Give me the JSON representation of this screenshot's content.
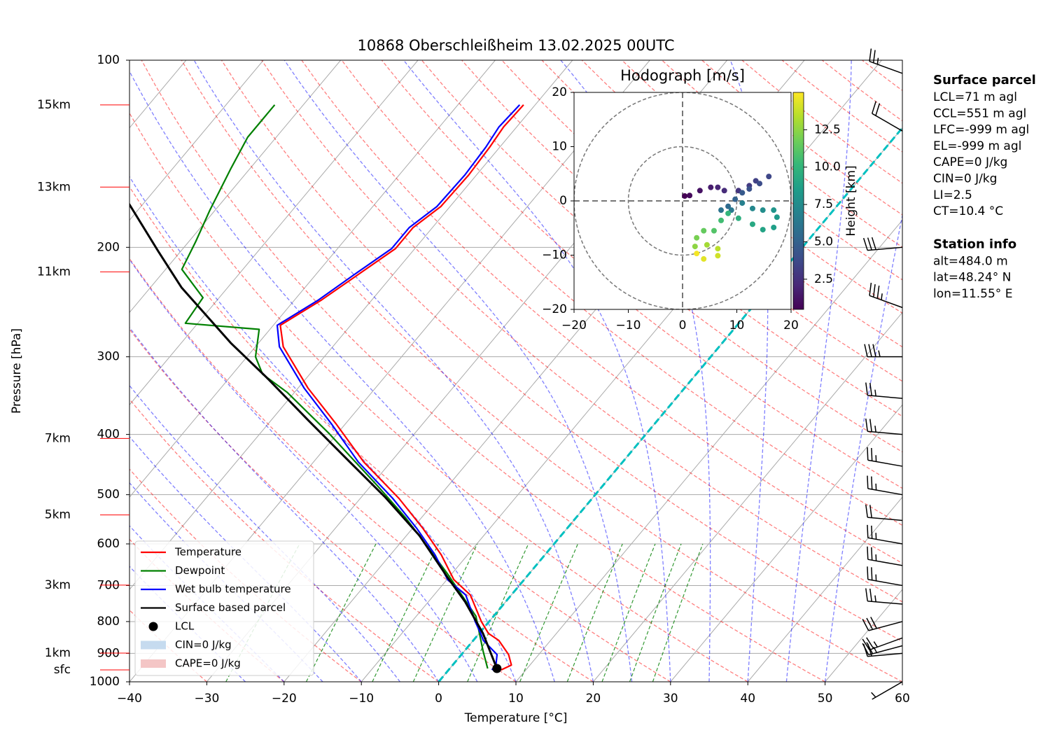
{
  "chart_data": [
    {
      "type": "skewt",
      "title": "10868 Oberschleißheim 13.02.2025 00UTC",
      "x_label": "Temperature [°C]",
      "y_label": "Pressure [hPa]",
      "xlim": [
        -40,
        60
      ],
      "ylim": [
        1000,
        100
      ],
      "log_y": true,
      "grid": true,
      "xticks": [
        {
          "value": -40,
          "label": "−40"
        },
        {
          "value": -30,
          "label": "−30"
        },
        {
          "value": -20,
          "label": "−20"
        },
        {
          "value": -10,
          "label": "−10"
        },
        0,
        10,
        20,
        30,
        40,
        50,
        60
      ],
      "yticks": [
        100,
        200,
        300,
        400,
        500,
        600,
        700,
        800,
        900,
        1000
      ],
      "series": [
        {
          "name": "Temperature",
          "color": "#ff0000",
          "pressure": [
            957,
            940,
            904,
            858,
            836,
            800,
            725,
            685,
            625,
            567,
            507,
            443,
            384,
            337,
            289,
            267,
            243,
            222,
            201,
            186,
            172,
            153,
            138,
            128,
            118
          ],
          "temperature": [
            6.8,
            7.6,
            6.1,
            3.3,
            1.2,
            -1.0,
            -5.3,
            -9.1,
            -13.4,
            -18.6,
            -25.0,
            -33.5,
            -41.3,
            -48.7,
            -56.4,
            -59.1,
            -56.5,
            -54.6,
            -52.5,
            -52.5,
            -51.2,
            -51.0,
            -51.3,
            -51.7,
            -51.5
          ]
        },
        {
          "name": "Dewpoint",
          "color": "#008000",
          "pressure": [
            952,
            892,
            784,
            671,
            605,
            545,
            485,
            399,
            342,
            320,
            300,
            271,
            265,
            241,
            217,
            196,
            174,
            149,
            133,
            118
          ],
          "temperature": [
            4.9,
            2.4,
            -2.3,
            -10.5,
            -16.2,
            -22.0,
            -29.0,
            -41.0,
            -51.0,
            -56.1,
            -58.9,
            -61.4,
            -71.6,
            -72.1,
            -77.9,
            -79.1,
            -80.7,
            -82.5,
            -83.7,
            -83.7
          ]
        },
        {
          "name": "Wet bulb temperature",
          "color": "#0000ff",
          "pressure": [
            957,
            940,
            904,
            858,
            836,
            800,
            725,
            685,
            625,
            567,
            507,
            443,
            384,
            337,
            289,
            267,
            243,
            222,
            201,
            186,
            172,
            153,
            138,
            128,
            118
          ],
          "temperature": [
            5.6,
            5.6,
            4.6,
            1.3,
            0.2,
            -1.8,
            -5.9,
            -9.9,
            -14.2,
            -19.4,
            -25.8,
            -34.2,
            -41.9,
            -49.2,
            -56.9,
            -59.5,
            -56.9,
            -55.1,
            -53.0,
            -53.0,
            -51.7,
            -51.5,
            -51.8,
            -52.3,
            -52.0
          ]
        },
        {
          "name": "Surface based parcel",
          "color": "#000000",
          "pressure": [
            952,
            836,
            744,
            680,
            582,
            504,
            443,
            379,
            324,
            285,
            232,
            203,
            170
          ],
          "temperature": [
            6.1,
            0.5,
            -5.2,
            -10.1,
            -18.3,
            -27.0,
            -35.3,
            -45.3,
            -55.2,
            -63.6,
            -76.0,
            -82.9,
            -91.9
          ]
        }
      ],
      "lcl": {
        "name": "LCL",
        "color": "#000000",
        "pressure": 952,
        "temperature": 6.1
      },
      "shading": [
        {
          "name": "CIN=0 J/kg",
          "color": "#c6dbef"
        },
        {
          "name": "CAPE=0 J/kg",
          "color": "#f4c6c6"
        }
      ],
      "height_labels": [
        {
          "label": "15km",
          "pressure": 118
        },
        {
          "label": "13km",
          "pressure": 160
        },
        {
          "label": "11km",
          "pressure": 219
        },
        {
          "label": "7km",
          "pressure": 406
        },
        {
          "label": "5km",
          "pressure": 539
        },
        {
          "label": "3km",
          "pressure": 699
        },
        {
          "label": "1km",
          "pressure": 899
        },
        {
          "label": "sfc",
          "pressure": 957
        }
      ],
      "winds": {
        "pressure": [
          105,
          130,
          200,
          250,
          300,
          350,
          400,
          450,
          500,
          550,
          600,
          650,
          700,
          750,
          800,
          850,
          875,
          900,
          1000
        ],
        "speed": [
          25,
          20,
          30,
          35,
          35,
          25,
          25,
          25,
          25,
          20,
          25,
          25,
          25,
          25,
          30,
          25,
          25,
          20,
          5
        ],
        "direction": [
          290,
          300,
          265,
          290,
          270,
          275,
          275,
          280,
          280,
          275,
          280,
          280,
          280,
          275,
          255,
          250,
          255,
          265,
          240
        ]
      }
    },
    {
      "type": "hodograph",
      "title": "Hodograph [m/s]",
      "xlim": [
        -20,
        20
      ],
      "ylim": [
        -20,
        20
      ],
      "xticks": [
        {
          "value": -20,
          "label": "−20"
        },
        {
          "value": -10,
          "label": "−10"
        },
        0,
        10,
        20
      ],
      "yticks": [
        {
          "value": -20,
          "label": "−20"
        },
        {
          "value": -10,
          "label": "−10"
        },
        0,
        10,
        20
      ],
      "colormap": "viridis",
      "u": [
        0.4,
        1.3,
        3.2,
        5.2,
        6.5,
        7.7,
        10.3,
        12.3,
        13.5,
        15.9,
        14.2,
        12.3,
        11.0,
        9.7,
        8.4,
        7.1,
        9.0,
        11.0,
        12.9,
        14.8,
        16.8,
        17.4,
        16.8,
        14.8,
        12.9,
        10.3,
        8.4,
        7.1,
        5.8,
        3.9,
        2.6,
        2.3,
        4.5,
        6.5,
        6.5,
        3.9,
        2.6
      ],
      "v": [
        0.9,
        1.0,
        1.9,
        2.5,
        2.5,
        1.9,
        1.9,
        2.8,
        3.7,
        4.5,
        3.2,
        2.2,
        1.5,
        0.3,
        -1.0,
        -1.7,
        -1.7,
        -0.4,
        -1.4,
        -1.7,
        -1.7,
        -3.0,
        -4.9,
        -5.3,
        -4.3,
        -3.2,
        -2.3,
        -3.6,
        -5.5,
        -5.5,
        -6.8,
        -8.4,
        -8.1,
        -8.8,
        -10.1,
        -10.7,
        -9.7
      ],
      "height": [
        0.5,
        0.8,
        1.2,
        1.6,
        2.0,
        2.3,
        2.7,
        3.0,
        3.3,
        3.6,
        3.9,
        4.2,
        4.6,
        5.0,
        5.5,
        6.0,
        6.4,
        6.8,
        7.2,
        7.6,
        8.0,
        8.3,
        8.6,
        8.9,
        9.2,
        9.6,
        10.0,
        10.5,
        11.0,
        11.5,
        12.0,
        12.5,
        13.0,
        13.5,
        14.0,
        14.4,
        14.8
      ],
      "colorbar": {
        "label": "Height [km]",
        "clim": [
          0.48,
          15.0
        ],
        "ticks": [
          2.5,
          {
            "value": 5,
            "label": "5.0"
          },
          7.5,
          {
            "value": 10,
            "label": "10.0"
          },
          12.5
        ]
      }
    }
  ],
  "info": {
    "surface_parcel": {
      "title": "Surface parcel",
      "lines": [
        "LCL=71 m agl",
        "CCL=551 m agl",
        "LFC=-999 m agl",
        "EL=-999 m agl",
        "CAPE=0 J/kg",
        "CIN=0 J/kg",
        "LI=2.5",
        "CT=10.4 °C"
      ]
    },
    "station_info": {
      "title": "Station info",
      "lines": [
        "alt=484.0 m",
        "lat=48.24° N",
        "lon=11.55° E"
      ]
    }
  }
}
